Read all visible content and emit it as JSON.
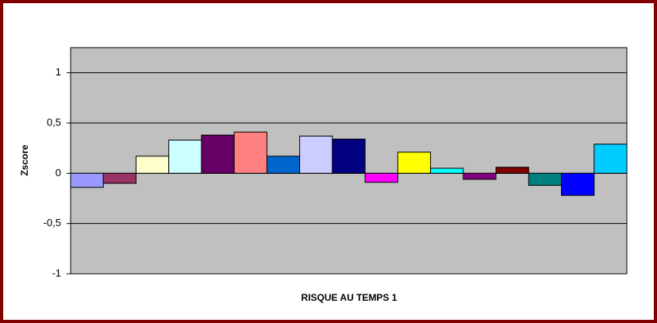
{
  "chart_data": {
    "type": "bar",
    "y_label": "Zscore",
    "x_label": "RISQUE AU TEMPS 1",
    "categories": [
      null,
      null,
      null,
      null,
      null,
      null,
      null,
      null,
      null,
      null,
      null,
      null,
      null,
      null,
      null,
      null,
      null
    ],
    "values": [
      -0.14,
      -0.1,
      0.17,
      0.33,
      0.38,
      0.41,
      0.17,
      0.37,
      0.34,
      -0.09,
      0.21,
      0.05,
      -0.06,
      0.06,
      -0.12,
      -0.22,
      0.29
    ],
    "colors": [
      "#9999FF",
      "#993366",
      "#FFFFCC",
      "#CCFFFF",
      "#660066",
      "#FF8080",
      "#0066CC",
      "#CCCCFF",
      "#000080",
      "#FF00FF",
      "#FFFF00",
      "#00FFFF",
      "#800080",
      "#800000",
      "#008080",
      "#0000FF",
      "#00CCFF"
    ],
    "ylim": [
      -1,
      1.25
    ],
    "yticks": [
      -1,
      {
        "value": -0.5,
        "label": "-0,5"
      },
      0,
      {
        "value": 0.5,
        "label": "0,5"
      },
      1
    ],
    "grid": true,
    "plot_background": "#C0C0C0",
    "frame_color": "#800000"
  }
}
